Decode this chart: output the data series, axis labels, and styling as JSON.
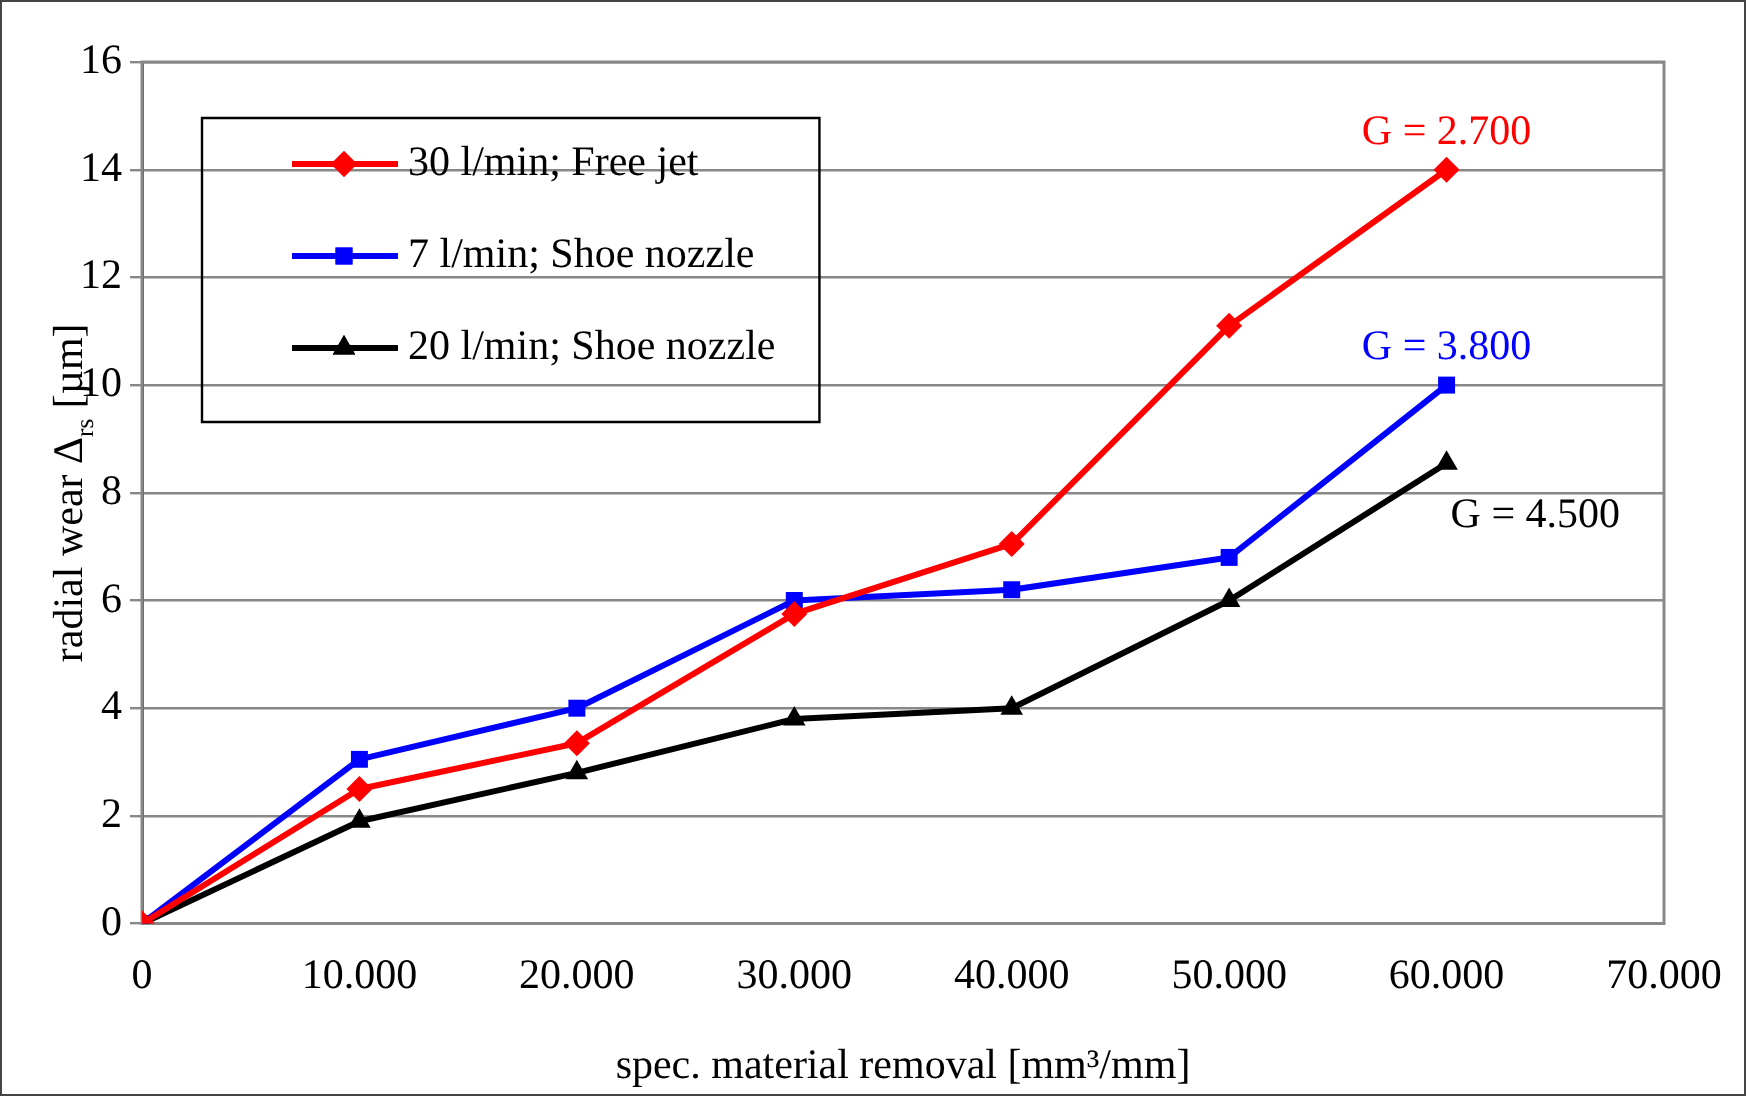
{
  "chart_data": {
    "type": "line",
    "xlabel": "spec. material removal [mm³/mm]",
    "ylabel": "radial wear Δ$_{rs}$ [µm]",
    "x": [
      0,
      10000,
      20000,
      30000,
      40000,
      50000,
      60000
    ],
    "xlim": [
      0,
      70000
    ],
    "xticks": [
      {
        "value": 0,
        "label": "0"
      },
      {
        "value": 10000,
        "label": "10.000"
      },
      {
        "value": 20000,
        "label": "20.000"
      },
      {
        "value": 30000,
        "label": "30.000"
      },
      {
        "value": 40000,
        "label": "40.000"
      },
      {
        "value": 50000,
        "label": "50.000"
      },
      {
        "value": 60000,
        "label": "60.000"
      },
      {
        "value": 70000,
        "label": "70.000"
      }
    ],
    "ylim": [
      0,
      16
    ],
    "yticks": [
      0,
      2,
      4,
      6,
      8,
      10,
      12,
      14,
      16
    ],
    "series": [
      {
        "name": "30 l/min; Free jet",
        "color": "#ff0000",
        "marker": "diamond",
        "values": [
          0,
          2.5,
          3.35,
          5.75,
          7.05,
          11.1,
          14
        ]
      },
      {
        "name": "7 l/min; Shoe nozzle",
        "color": "#0000ff",
        "marker": "square",
        "values": [
          0,
          3.05,
          4.0,
          6.0,
          6.2,
          6.8,
          10
        ]
      },
      {
        "name": "20 l/min; Shoe nozzle",
        "color": "#000000",
        "marker": "triangle",
        "values": [
          0,
          1.9,
          2.8,
          3.8,
          4.0,
          6.0,
          8.55
        ]
      }
    ],
    "annotations": [
      "G = 2.700",
      "G = 3.800",
      "G = 4.500"
    ],
    "grid": "y",
    "legend": "top left",
    "line_style": "solid"
  }
}
